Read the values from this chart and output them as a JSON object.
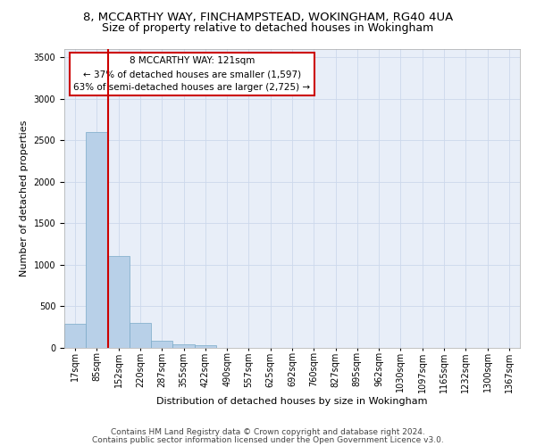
{
  "title_line1": "8, MCCARTHY WAY, FINCHAMPSTEAD, WOKINGHAM, RG40 4UA",
  "title_line2": "Size of property relative to detached houses in Wokingham",
  "xlabel": "Distribution of detached houses by size in Wokingham",
  "ylabel": "Number of detached properties",
  "bar_values": [
    290,
    2600,
    1110,
    300,
    90,
    45,
    30,
    0,
    0,
    0,
    0,
    0,
    0,
    0,
    0,
    0,
    0,
    0,
    0,
    0,
    0
  ],
  "bar_labels": [
    "17sqm",
    "85sqm",
    "152sqm",
    "220sqm",
    "287sqm",
    "355sqm",
    "422sqm",
    "490sqm",
    "557sqm",
    "625sqm",
    "692sqm",
    "760sqm",
    "827sqm",
    "895sqm",
    "962sqm",
    "1030sqm",
    "1097sqm",
    "1165sqm",
    "1232sqm",
    "1300sqm",
    "1367sqm"
  ],
  "bar_color": "#b8d0e8",
  "bar_edge_color": "#7aaac8",
  "vline_color": "#cc0000",
  "annotation_text": "8 MCCARTHY WAY: 121sqm\n← 37% of detached houses are smaller (1,597)\n63% of semi-detached houses are larger (2,725) →",
  "annotation_box_color": "#ffffff",
  "annotation_box_edge": "#cc0000",
  "ylim": [
    0,
    3600
  ],
  "yticks": [
    0,
    500,
    1000,
    1500,
    2000,
    2500,
    3000,
    3500
  ],
  "grid_color": "#ccd8ec",
  "bg_color": "#e8eef8",
  "footer_line1": "Contains HM Land Registry data © Crown copyright and database right 2024.",
  "footer_line2": "Contains public sector information licensed under the Open Government Licence v3.0.",
  "title_fontsize": 9.5,
  "subtitle_fontsize": 9,
  "axis_label_fontsize": 8,
  "tick_fontsize": 7,
  "footer_fontsize": 6.5,
  "annotation_fontsize": 7.5
}
